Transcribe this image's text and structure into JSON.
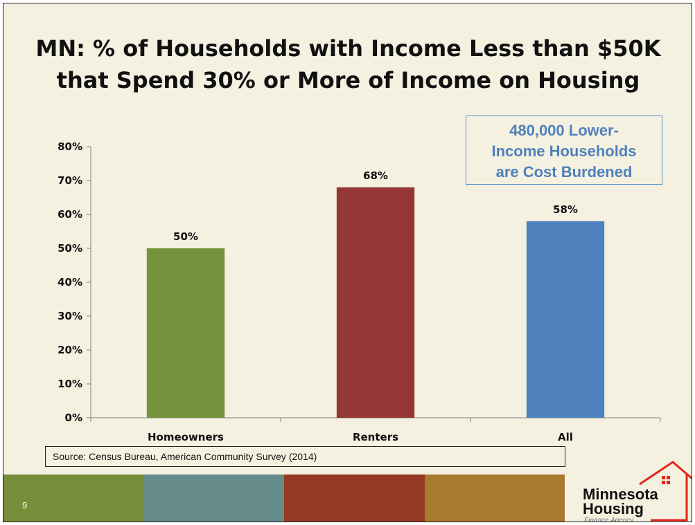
{
  "slide": {
    "title_line1": "MN: % of Households with Income Less than $50K",
    "title_line2": "that Spend 30% or More of Income on Housing",
    "callout": {
      "line1": "480,000 Lower-",
      "line2": "Income Households",
      "line3": "are Cost Burdened"
    },
    "source": "Source:  Census Bureau, American Community Survey (2014)",
    "slide_number": "9",
    "footer_colors": [
      "#768d39",
      "#658b8b",
      "#953a22",
      "#a87a30"
    ],
    "logo": {
      "line1": "Minnesota",
      "line2": "Housing",
      "line3": "Finance Agency",
      "accent": "#e0261c"
    }
  },
  "chart_data": {
    "type": "bar",
    "title": "MN: % of Households with Income Less than $50K that Spend 30% or More of Income on Housing",
    "categories": [
      "Homeowners",
      "Renters",
      "All"
    ],
    "values": [
      50,
      68,
      58
    ],
    "data_labels": [
      "50%",
      "68%",
      "58%"
    ],
    "colors": [
      "#76923c",
      "#953735",
      "#4f81bd"
    ],
    "ylim": [
      0,
      80
    ],
    "yticks": [
      0,
      10,
      20,
      30,
      40,
      50,
      60,
      70,
      80
    ],
    "ytick_labels": [
      "0%",
      "10%",
      "20%",
      "30%",
      "40%",
      "50%",
      "60%",
      "70%",
      "80%"
    ],
    "grid": false,
    "legend": "none"
  }
}
